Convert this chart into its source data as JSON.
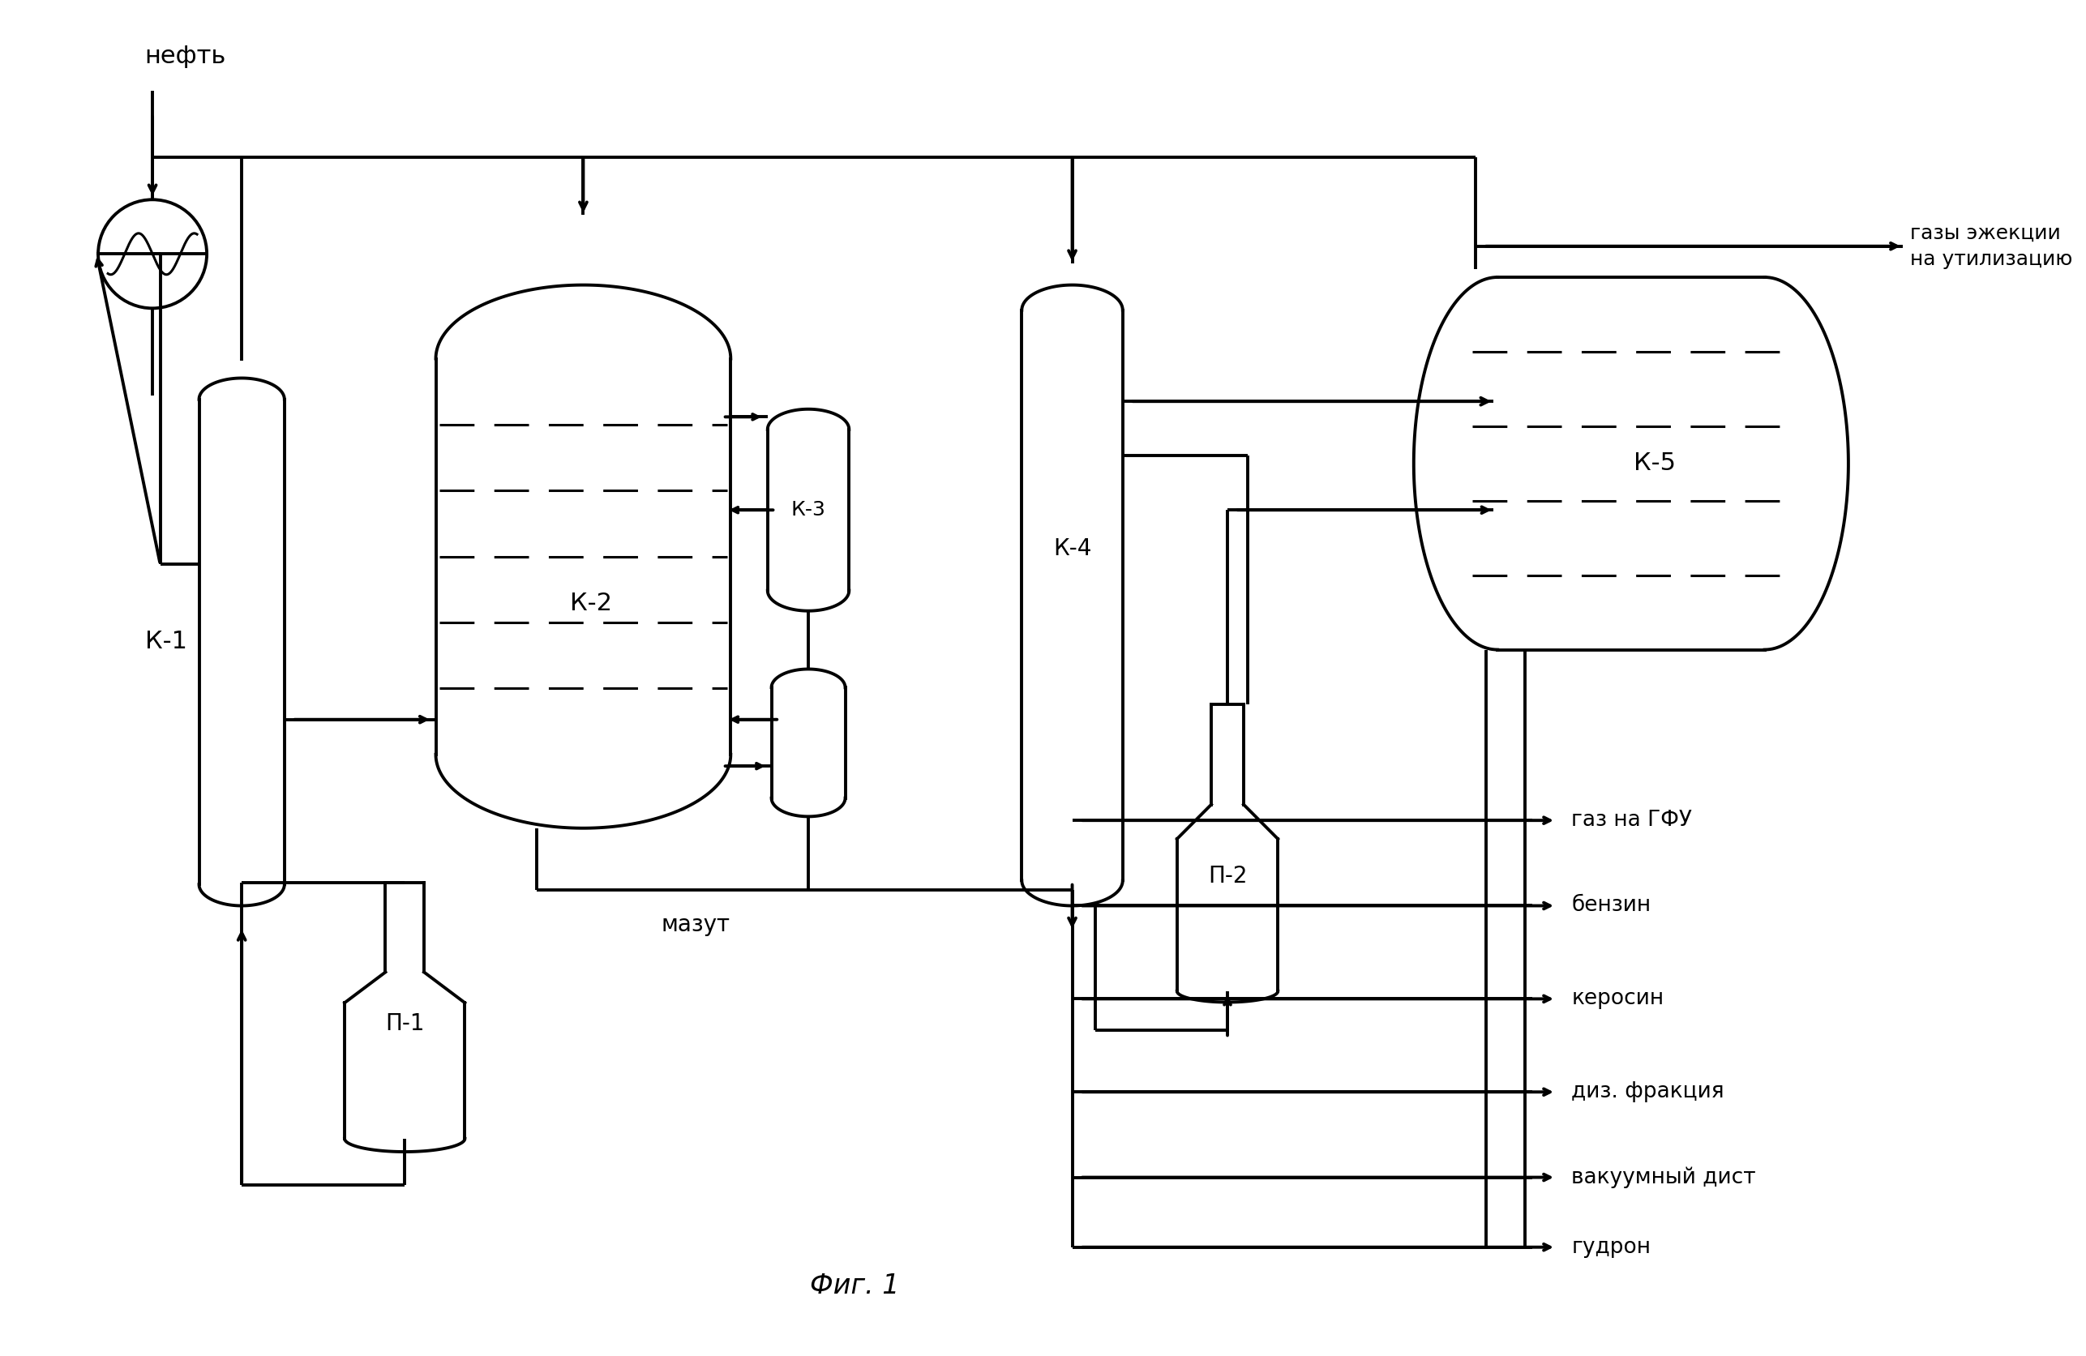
{
  "bg_color": "#ffffff",
  "lc": "#000000",
  "lw": 2.2,
  "tlw": 2.8,
  "fig_width": 25.73,
  "fig_height": 16.73,
  "labels": {
    "neft": "нефть",
    "K1": "К-1",
    "K2": "К-2",
    "K3": "К-3",
    "K4": "К-4",
    "K5": "К-5",
    "P1": "П-1",
    "P2": "П-2",
    "mazut": "мазут",
    "gaz_ejekcii": "газы эжекции\nна утилизацию",
    "gaz_GFU": "газ на ГФУ",
    "benzin": "бензин",
    "kerosin": "керосин",
    "diz_frakcia": "диз. фракция",
    "vakuum_dist": "вакуумный дист",
    "gudron": "гудрон",
    "fig1": "Фиг. 1"
  }
}
